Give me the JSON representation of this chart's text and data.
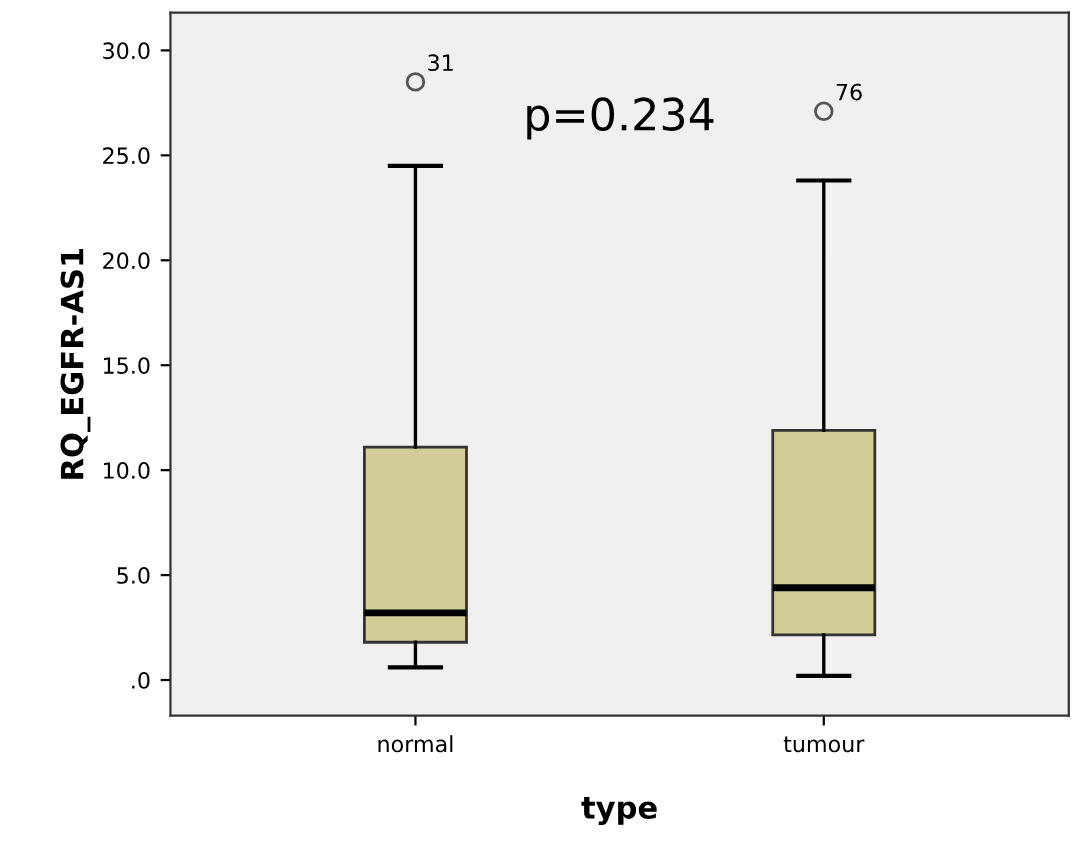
{
  "chart_data": {
    "type": "box",
    "xlabel": "type",
    "ylabel": "RQ_EGFR-AS1",
    "categories": [
      "normal",
      "tumour"
    ],
    "boxes": [
      {
        "low": 0.6,
        "q1": 1.8,
        "median": 3.2,
        "q3": 11.1,
        "high": 24.5,
        "outliers": [
          28.5
        ]
      },
      {
        "low": 0.2,
        "q1": 2.15,
        "median": 4.4,
        "q3": 11.9,
        "high": 23.8,
        "outliers": [
          27.1
        ]
      }
    ],
    "color": "#d3ce97",
    "ylim": [
      -1.7,
      31.8
    ],
    "yticks": [
      {
        "value": 0,
        "label": ".0"
      },
      {
        "value": 5,
        "label": "5.0"
      },
      {
        "value": 10,
        "label": "10.0"
      },
      {
        "value": 15,
        "label": "15.0"
      },
      {
        "value": 20,
        "label": "20.0"
      },
      {
        "value": 25,
        "label": "25.0"
      },
      {
        "value": 30,
        "label": "30.0"
      }
    ],
    "grid": false,
    "annotations": [
      "31",
      "76",
      "p=0.234"
    ]
  }
}
